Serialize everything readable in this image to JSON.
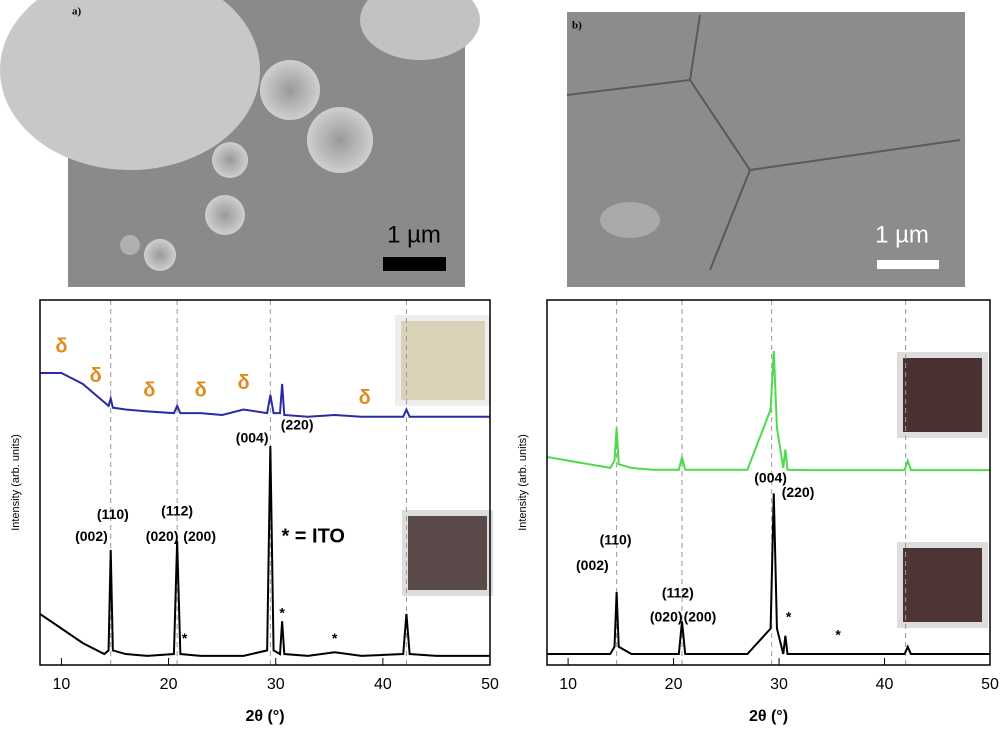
{
  "images": [
    {
      "label": "a)",
      "scale": "1 µm"
    },
    {
      "label": "b)",
      "scale": "1 µm"
    }
  ],
  "chart_data": [
    {
      "type": "line",
      "xlabel": "2θ (°)",
      "ylabel": "Intensity (arb. units)",
      "xlim": [
        8,
        50
      ],
      "xticks": [
        10,
        20,
        30,
        40,
        50
      ],
      "ylim": [
        0,
        100
      ],
      "reference_lines": [
        14.6,
        20.8,
        29.5,
        42.2
      ],
      "x": [
        8,
        10,
        12,
        14,
        14.4,
        14.6,
        14.8,
        16,
        18,
        20.5,
        20.8,
        21.1,
        23,
        25,
        27,
        29.2,
        29.5,
        29.8,
        30.4,
        30.6,
        30.8,
        33,
        35.5,
        38,
        41.9,
        42.2,
        42.5,
        45,
        50
      ],
      "series": [
        {
          "color": "#000000",
          "values": [
            14,
            10,
            6,
            3,
            4,
            31.5,
            4,
            3,
            2.5,
            3,
            34,
            3,
            2.5,
            2.5,
            2.5,
            4,
            60,
            4,
            3,
            12,
            3,
            2.5,
            3.5,
            2.5,
            3,
            14,
            3,
            2.5,
            2.5
          ]
        },
        {
          "color": "#2a2aa8",
          "values": [
            80,
            80,
            77,
            72,
            71,
            73,
            70.5,
            70,
            69.5,
            69,
            71,
            69,
            69,
            68.5,
            70,
            69,
            74,
            69,
            69,
            77,
            68.5,
            68,
            68.5,
            68,
            68,
            70,
            68,
            68,
            68
          ]
        }
      ],
      "annotations": [
        {
          "text": "δ",
          "x": 10,
          "y": 87,
          "color": "#e08a1e"
        },
        {
          "text": "δ",
          "x": 13.2,
          "y": 79,
          "color": "#e08a1e"
        },
        {
          "text": "δ",
          "x": 18.2,
          "y": 75,
          "color": "#e08a1e"
        },
        {
          "text": "δ",
          "x": 23,
          "y": 75,
          "color": "#e08a1e"
        },
        {
          "text": "δ",
          "x": 27,
          "y": 77,
          "color": "#e08a1e"
        },
        {
          "text": "δ",
          "x": 38.3,
          "y": 73,
          "color": "#e08a1e"
        },
        {
          "text": "(002)",
          "x": 12.8,
          "y": 35
        },
        {
          "text": "(110)",
          "x": 14.8,
          "y": 41
        },
        {
          "text": "(020)",
          "x": 19.4,
          "y": 35
        },
        {
          "text": "(112)",
          "x": 20.8,
          "y": 42
        },
        {
          "text": "(200)",
          "x": 22.9,
          "y": 35
        },
        {
          "text": "(004)",
          "x": 27.8,
          "y": 62
        },
        {
          "text": "(220)",
          "x": 32,
          "y": 65.5
        },
        {
          "text": "*",
          "x": 21.5,
          "y": 7
        },
        {
          "text": "*",
          "x": 30.6,
          "y": 14
        },
        {
          "text": "*",
          "x": 35.5,
          "y": 7
        },
        {
          "text": "* = ITO",
          "x": 33.5,
          "y": 35
        }
      ]
    },
    {
      "type": "line",
      "xlabel": "2θ (°)",
      "ylabel": "Intensity (arb. units)",
      "xlim": [
        8,
        50
      ],
      "xticks": [
        10,
        20,
        30,
        40,
        50
      ],
      "ylim": [
        0,
        100
      ],
      "reference_lines": [
        14.6,
        20.8,
        29.3,
        42.0
      ],
      "x": [
        8,
        10,
        12,
        14,
        14.4,
        14.6,
        14.8,
        16,
        18,
        20.5,
        20.8,
        21.1,
        23,
        25,
        27,
        29.2,
        29.5,
        29.8,
        30.4,
        30.6,
        30.8,
        33,
        35.5,
        38,
        41.9,
        42.2,
        42.5,
        45,
        50
      ],
      "series": [
        {
          "color": "#000000",
          "values": [
            3,
            3,
            3,
            3,
            5,
            20,
            5,
            3,
            3,
            3,
            12,
            3,
            3,
            3,
            3,
            10,
            47,
            10,
            3,
            8,
            3,
            3,
            3,
            3,
            3,
            5,
            3,
            3,
            3
          ]
        },
        {
          "color": "#4ddb4d",
          "values": [
            57,
            56,
            55,
            54,
            56,
            65,
            55,
            54,
            53.5,
            53.5,
            57,
            53.5,
            53.5,
            53.5,
            53.5,
            70,
            86,
            65,
            54,
            59,
            53.5,
            53.4,
            53.4,
            53.4,
            53.4,
            56,
            53.4,
            53.4,
            53.4
          ]
        }
      ],
      "annotations": [
        {
          "text": "(002)",
          "x": 12.3,
          "y": 27
        },
        {
          "text": "(110)",
          "x": 14.5,
          "y": 34
        },
        {
          "text": "(020)",
          "x": 19.3,
          "y": 13
        },
        {
          "text": "(112)",
          "x": 20.4,
          "y": 19.5
        },
        {
          "text": "(200)",
          "x": 22.5,
          "y": 13
        },
        {
          "text": "(004)",
          "x": 29.2,
          "y": 51
        },
        {
          "text": "(220)",
          "x": 31.8,
          "y": 47
        },
        {
          "text": "*",
          "x": 30.9,
          "y": 13
        },
        {
          "text": "*",
          "x": 35.6,
          "y": 8
        }
      ]
    }
  ]
}
